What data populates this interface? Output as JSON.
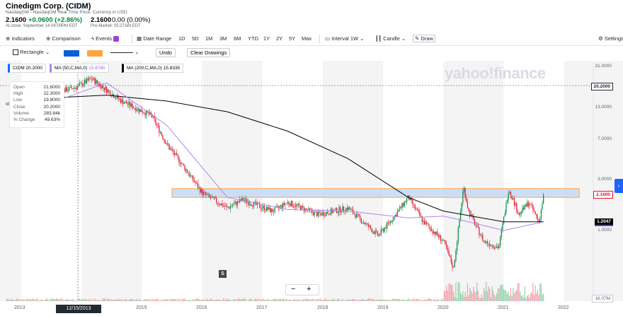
{
  "quote": {
    "name": "Cinedigm Corp. (CIDM)",
    "exchange_line": "NasdaqGM - NasdaqGM Real Time Price. Currency in USD",
    "price": "2.1600",
    "change": "+0.0600 (+2.86%)",
    "close_time": "At close: September 14 04:00PM EDT",
    "premarket_price": "2.1600",
    "premarket_change": "0.00 (0.00%)",
    "premarket_time": "Pre-Market: 05:27AM EDT"
  },
  "toolbar": {
    "indicators": "Indicators",
    "comparison": "Comparison",
    "events": "Events",
    "date_range": "Date Range",
    "ranges": [
      "1D",
      "5D",
      "1M",
      "3M",
      "6M",
      "YTD",
      "1Y",
      "2Y",
      "5Y",
      "Max"
    ],
    "interval": "Interval",
    "interval_value": "1W",
    "candle": "Candle",
    "draw": "Draw",
    "settings": "Settings"
  },
  "drawbar": {
    "shape": "Rectangle",
    "color1": "#0e5ed8",
    "color2": "#ffa53d",
    "undo": "Undo",
    "clear": "Clear Drawings"
  },
  "legend": {
    "symbol": "CIDM",
    "symbol_value": "20.2000",
    "ma50": "MA (50,C,MA,0)",
    "ma50_value": "15.8780",
    "ma200": "MA (200,C,MA,0)",
    "ma200_value": "15.8335"
  },
  "ohlc": {
    "open_label": "Open",
    "open": "21.6000",
    "high_label": "High",
    "high": "22.3000",
    "low_label": "Low",
    "low": "19.8000",
    "close_label": "Close",
    "close": "20.2000",
    "volume_label": "Volume",
    "volume": "283.84k",
    "pct_label": "% Change",
    "pct": "49.63%"
  },
  "watermark": "yahoo!finance",
  "y_ticks": [
    "31.0000",
    "13.0000",
    "7.0000",
    "3.0000",
    "1.0000"
  ],
  "tags": {
    "hover_price": "20.2000",
    "last_price": "2.1600",
    "ma_price": "1.2047",
    "volume_max": "18.07M"
  },
  "x_ticks": [
    "2013",
    "2015",
    "2016",
    "2017",
    "2018",
    "2019",
    "2020",
    "2021",
    "2022"
  ],
  "x_hover": "12/15/2013",
  "dividend_marker": "S",
  "colors": {
    "up": "#00873c",
    "down": "#eb0f29",
    "ma50": "#b084f0",
    "ma200": "#000000",
    "zone_fill": "#c6d8f5",
    "zone_border": "#ffa53d",
    "accent": "#0f69ff"
  },
  "chart_data": {
    "type": "candlestick",
    "interval": "1W",
    "y_scale": "log",
    "ylim": [
      0.55,
      35
    ],
    "x_range": [
      "2012-10",
      "2022-06"
    ],
    "series": [
      {
        "name": "CIDM",
        "approx_close": [
          [
            "2012-10",
            14.0
          ],
          [
            "2013-06",
            17.0
          ],
          [
            "2013-12",
            20.2
          ],
          [
            "2014-03",
            24.0
          ],
          [
            "2014-09",
            15.0
          ],
          [
            "2015-03",
            11.0
          ],
          [
            "2015-06",
            6.0
          ],
          [
            "2015-09",
            4.0
          ],
          [
            "2016-01",
            2.2
          ],
          [
            "2016-06",
            1.6
          ],
          [
            "2016-09",
            1.9
          ],
          [
            "2017-03",
            1.5
          ],
          [
            "2017-06",
            1.8
          ],
          [
            "2017-12",
            1.4
          ],
          [
            "2018-06",
            1.6
          ],
          [
            "2018-12",
            0.9
          ],
          [
            "2019-03",
            1.3
          ],
          [
            "2019-06",
            2.0
          ],
          [
            "2019-09",
            1.2
          ],
          [
            "2020-01",
            0.8
          ],
          [
            "2020-03",
            0.45
          ],
          [
            "2020-05",
            2.5
          ],
          [
            "2020-06",
            1.5
          ],
          [
            "2020-09",
            0.8
          ],
          [
            "2020-12",
            0.7
          ],
          [
            "2021-02",
            2.4
          ],
          [
            "2021-04",
            1.4
          ],
          [
            "2021-06",
            1.8
          ],
          [
            "2021-08",
            1.2
          ],
          [
            "2021-09",
            2.16
          ]
        ]
      },
      {
        "name": "MA (50,C,MA,0)",
        "approx": [
          [
            "2013-06",
            14.0
          ],
          [
            "2014-06",
            22.0
          ],
          [
            "2015-06",
            9.0
          ],
          [
            "2016-06",
            2.0
          ],
          [
            "2017-06",
            1.55
          ],
          [
            "2018-06",
            1.5
          ],
          [
            "2019-06",
            1.3
          ],
          [
            "2020-01",
            1.35
          ],
          [
            "2020-06",
            1.2
          ],
          [
            "2021-01",
            1.0
          ],
          [
            "2021-09",
            1.2
          ]
        ]
      },
      {
        "name": "MA (200,C,MA,0)",
        "approx": [
          [
            "2013-06",
            16.0
          ],
          [
            "2014-06",
            17.0
          ],
          [
            "2015-06",
            15.0
          ],
          [
            "2016-06",
            12.0
          ],
          [
            "2017-06",
            8.0
          ],
          [
            "2018-06",
            4.5
          ],
          [
            "2019-06",
            2.0
          ],
          [
            "2020-01",
            1.5
          ],
          [
            "2021-01",
            1.2
          ],
          [
            "2021-09",
            1.2
          ]
        ]
      }
    ],
    "zone": {
      "from": "2015-07",
      "to": "2022-04",
      "low": 2.0,
      "high": 2.4
    }
  }
}
